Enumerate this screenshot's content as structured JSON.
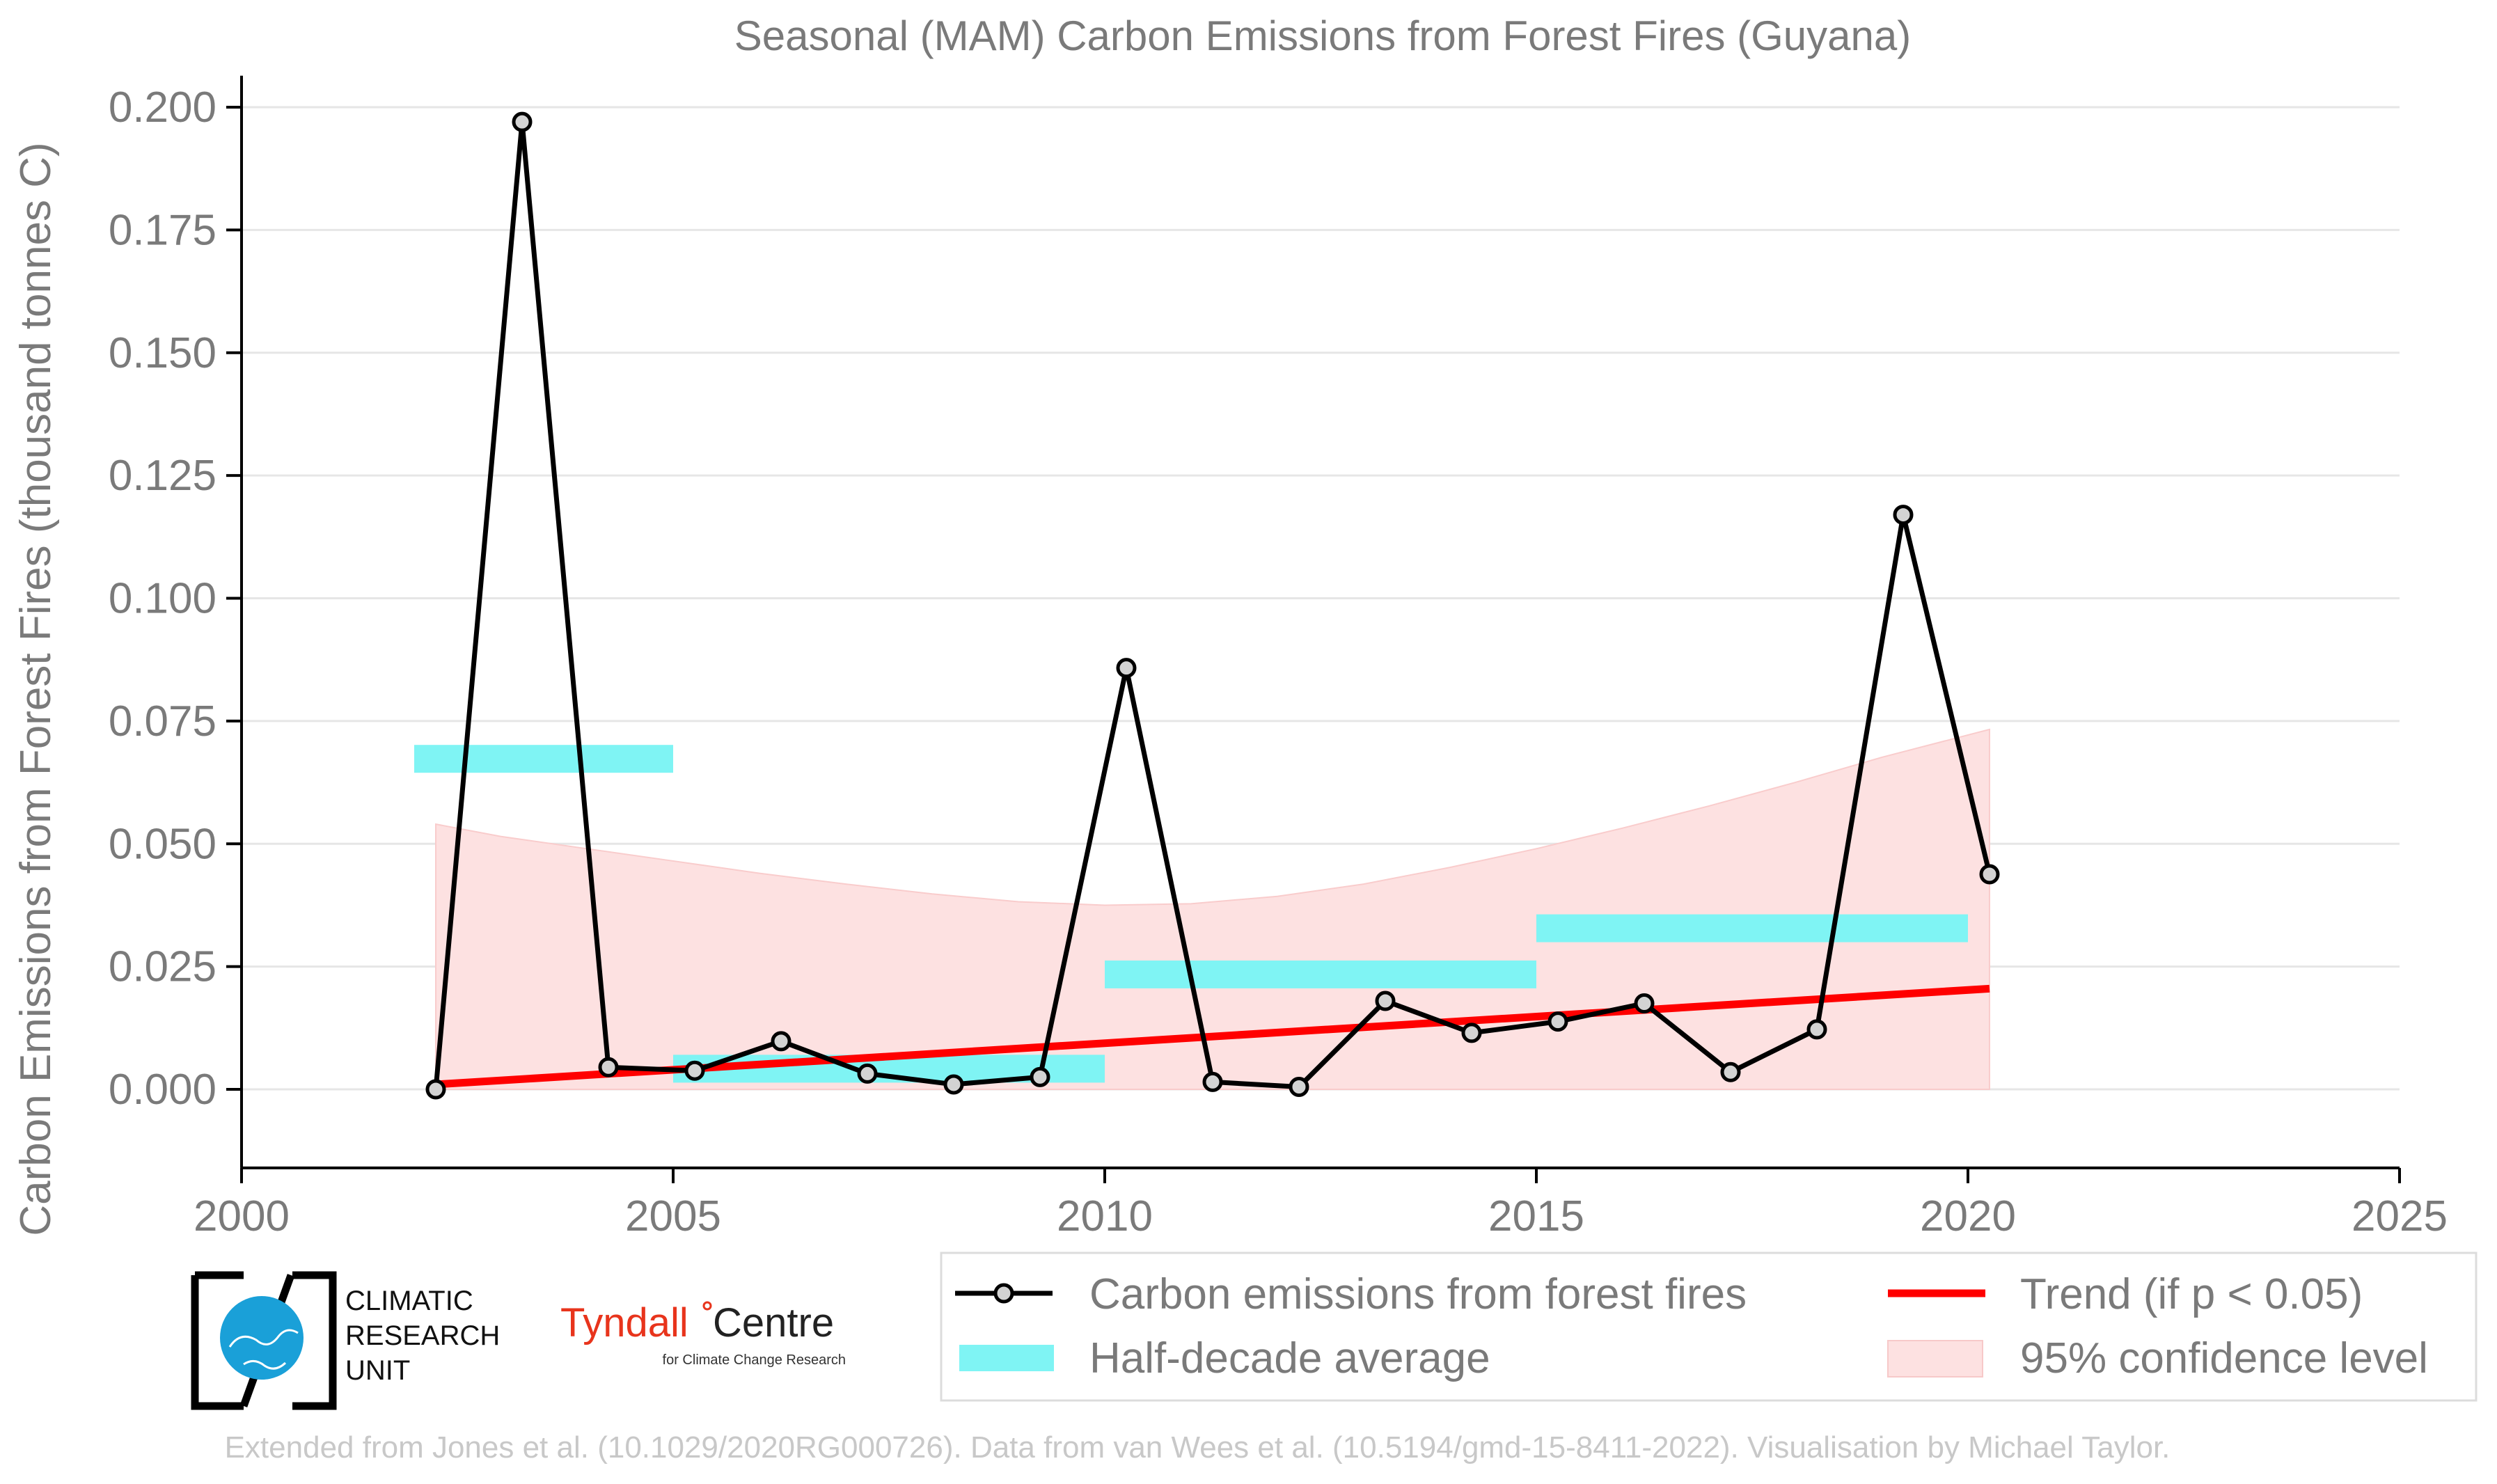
{
  "chart_data": {
    "type": "line",
    "title": "Seasonal (MAM) Carbon Emissions from Forest Fires (Guyana)",
    "ylabel": "Carbon Emissions from Forest Fires (thousand tonnes C)",
    "xlabel": "",
    "xlim": [
      2000,
      2025
    ],
    "ylim": [
      -0.016,
      0.205
    ],
    "x_ticks": [
      "2000",
      "2005",
      "2010",
      "2015",
      "2020",
      "2025"
    ],
    "y_ticks": [
      "0.000",
      "0.025",
      "0.050",
      "0.075",
      "0.100",
      "0.125",
      "0.150",
      "0.175",
      "0.200"
    ],
    "grid": true,
    "series": [
      {
        "name": "Carbon emissions from forest fires",
        "color": "#000000",
        "x": [
          2002.25,
          2003.25,
          2004.25,
          2005.25,
          2006.25,
          2007.25,
          2008.25,
          2009.25,
          2010.25,
          2011.25,
          2012.25,
          2013.25,
          2014.25,
          2015.25,
          2016.25,
          2017.25,
          2018.25,
          2019.25,
          2020.25
        ],
        "y": [
          0.0,
          0.197,
          0.0045,
          0.0038,
          0.0098,
          0.0032,
          0.001,
          0.0025,
          0.0858,
          0.0015,
          0.0005,
          0.018,
          0.0115,
          0.0138,
          0.0175,
          0.0035,
          0.0122,
          0.117,
          0.0438
        ]
      }
    ],
    "half_decade_average": {
      "name": "Half-decade average",
      "color": "#7ff4f4",
      "segments": [
        {
          "x_start": 2002,
          "x_end": 2005,
          "y": 0.0673
        },
        {
          "x_start": 2005,
          "x_end": 2010,
          "y": 0.0042
        },
        {
          "x_start": 2010,
          "x_end": 2015,
          "y": 0.0234
        },
        {
          "x_start": 2015,
          "x_end": 2020,
          "y": 0.0328
        }
      ]
    },
    "trend": {
      "name": "Trend (if p < 0.05)",
      "color": "#ff0000",
      "x": [
        2002.25,
        2020.25
      ],
      "y": [
        0.001,
        0.0205
      ]
    },
    "confidence_band": {
      "name": "95% confidence level",
      "color": "#fde1e1",
      "x": [
        2002.25,
        2003,
        2004,
        2005,
        2006,
        2007,
        2008,
        2009,
        2010,
        2011,
        2012,
        2013,
        2014,
        2015,
        2016,
        2017,
        2018,
        2019,
        2020.25
      ],
      "upper": [
        0.054,
        0.0515,
        0.049,
        0.0465,
        0.044,
        0.0418,
        0.0398,
        0.0382,
        0.0375,
        0.0378,
        0.0393,
        0.0418,
        0.0452,
        0.049,
        0.0532,
        0.0577,
        0.0625,
        0.0676,
        0.0733
      ],
      "lower": 0.0
    },
    "legend_placement": "bottom"
  },
  "legend": {
    "series_label": "Carbon emissions from forest fires",
    "trend_label": "Trend (if p < 0.05)",
    "halfdecade_label": "Half-decade average",
    "confidence_label": "95% confidence level"
  },
  "logos": {
    "cru_line1": "CLIMATIC",
    "cru_line2": "RESEARCH",
    "cru_line3": "UNIT",
    "tyndall_name": "Tyndall",
    "tyndall_centre": "Centre",
    "tyndall_sub": "for Climate Change Research"
  },
  "credit": "Extended from Jones et al. (10.1029/2020RG000726). Data from van Wees et al. (10.5194/gmd-15-8411-2022). Visualisation by Michael Taylor.",
  "colors": {
    "text": "#7a7a7a",
    "grid": "#e6e6e6",
    "axis": "#000000",
    "credit": "#c8c8c8"
  }
}
